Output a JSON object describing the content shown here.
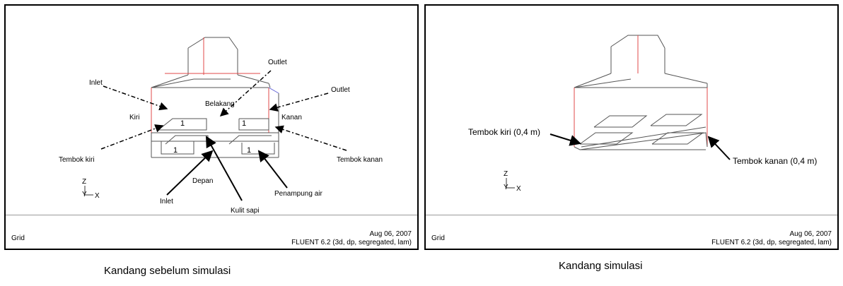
{
  "left_panel": {
    "labels": {
      "inlet_top": "Inlet",
      "outlet_top": "Outlet",
      "outlet_right": "Outlet",
      "belakang": "Belakang",
      "kiri": "Kiri",
      "kanan": "Kanan",
      "tembok_kiri": "Tembok kiri",
      "tembok_kanan": "Tembok kanan",
      "depan": "Depan",
      "inlet_bottom": "Inlet",
      "kulit_sapi": "Kulit sapi",
      "penampung_air": "Penampung air",
      "num_1a": "1",
      "num_1b": "1",
      "num_1c": "1",
      "num_1d": "1"
    },
    "axis": {
      "z": "Z",
      "x": "X"
    },
    "footer": {
      "grid": "Grid",
      "date": "Aug 06, 2007",
      "software": "FLUENT 6.2 (3d, dp, segregated, lam)"
    }
  },
  "right_panel": {
    "labels": {
      "tembok_kiri": "Tembok kiri (0,4 m)",
      "tembok_kanan": "Tembok kanan (0,4 m)"
    },
    "axis": {
      "z": "Z",
      "x": "X"
    },
    "footer": {
      "grid": "Grid",
      "date": "Aug 06, 2007",
      "software": "FLUENT 6.2 (3d, dp, segregated, lam)"
    }
  },
  "captions": {
    "left": "Kandang sebelum simulasi",
    "right": "Kandang simulasi"
  },
  "colors": {
    "edge": "#555555",
    "red_edge": "#e24a4a",
    "blue_edge": "#6a6ad8"
  }
}
